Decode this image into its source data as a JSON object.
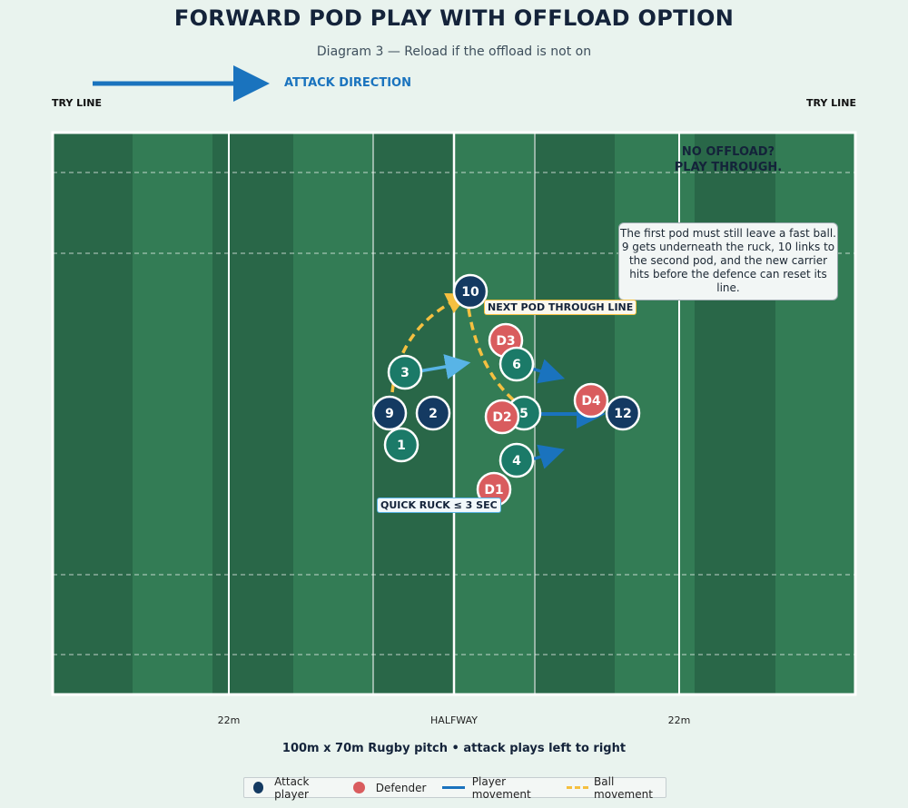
{
  "title": "FORWARD POD PLAY WITH OFFLOAD OPTION",
  "subtitle": "Diagram 3 — Reload if the offload is not on",
  "attack_direction": "ATTACK DIRECTION",
  "try_line_left": "TRY LINE",
  "try_line_right": "TRY LINE",
  "axis": {
    "left_22": "22m",
    "halfway": "HALFWAY",
    "right_22": "22m"
  },
  "caption": "100m x 70m Rugby pitch • attack plays left to right",
  "no_offload": "NO OFFLOAD? PLAY THROUGH.",
  "note": "The first pod must still leave a fast ball. 9 gets underneath the ruck, 10 links to the second pod, and the new carrier hits before the defence can reset its line.",
  "callouts": {
    "next_pod": "NEXT POD THROUGH LINE",
    "quick_ruck": "QUICK RUCK ≤ 3 SEC"
  },
  "players": {
    "p10": "10",
    "p3": "3",
    "p9": "9",
    "p2": "2",
    "p1": "1",
    "p6": "6",
    "p5": "5",
    "p4": "4",
    "p12": "12",
    "d1": "D1",
    "d2": "D2",
    "d3": "D3",
    "d4": "D4"
  },
  "legend": {
    "attack": "Attack player",
    "defender": "Defender",
    "player_movement": "Player movement",
    "ball_movement": "Ball movement"
  },
  "colors": {
    "attack_navy": "#143a62",
    "attack_teal": "#1b7a68",
    "defender": "#d95c5e",
    "player_movement": "#1a73be",
    "ball_movement": "#f5c040",
    "pitch_dark": "#296748",
    "pitch_light": "#337c55"
  }
}
